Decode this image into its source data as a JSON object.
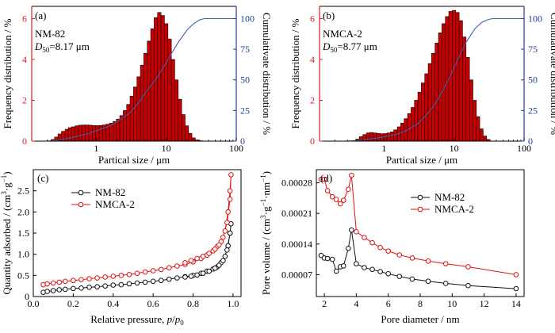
{
  "colors": {
    "bar_fill": "#c40000",
    "bar_edge": "#1a0000",
    "left_axis_red": "#d62020",
    "right_axis_blue": "#1f3f9e",
    "cumulative_line": "#3a62b5",
    "series_black": "#111111",
    "series_red": "#e01010"
  },
  "chart_data": [
    {
      "type": "bar",
      "panel_label": "(a)",
      "sample": "NM-82",
      "d50_label": "D",
      "d50_sub": "50",
      "d50_value": "=8.17 μm",
      "xlabel": "Partical size / μm",
      "ylabel": "Frequency distribution / %",
      "ylabel_right": "Cumulativate distribution / %",
      "xscale": "log",
      "xlim": [
        0.12,
        100
      ],
      "ylim": [
        0,
        6.6
      ],
      "ylim_right": [
        0,
        110
      ],
      "xticks": [
        {
          "v": 1,
          "label": "1"
        },
        {
          "v": 10,
          "label": "10"
        },
        {
          "v": 100,
          "label": "100"
        }
      ],
      "yticks": [
        0,
        2,
        4,
        6
      ],
      "yticks_right": [
        0,
        25,
        50,
        75,
        100
      ],
      "bins": {
        "x": [
          0.24,
          0.27,
          0.3,
          0.34,
          0.38,
          0.42,
          0.47,
          0.53,
          0.59,
          0.66,
          0.74,
          0.83,
          0.93,
          1.04,
          1.17,
          1.3,
          1.46,
          1.64,
          1.83,
          2.05,
          2.3,
          2.57,
          2.88,
          3.22,
          3.61,
          4.04,
          4.52,
          5.06,
          5.67,
          6.35,
          7.11,
          7.96,
          8.91,
          9.98,
          11.2,
          12.5,
          14.0,
          15.7,
          17.6,
          19.7,
          22.0,
          24.6,
          27.6,
          30.9
        ],
        "values": [
          0.08,
          0.2,
          0.35,
          0.48,
          0.58,
          0.66,
          0.7,
          0.75,
          0.78,
          0.79,
          0.79,
          0.78,
          0.76,
          0.76,
          0.77,
          0.79,
          0.83,
          0.88,
          0.96,
          1.08,
          1.25,
          1.5,
          1.8,
          2.2,
          2.65,
          3.15,
          3.72,
          4.3,
          4.9,
          5.5,
          6.05,
          6.3,
          6.15,
          5.75,
          5.0,
          4.0,
          3.0,
          2.05,
          1.3,
          0.75,
          0.38,
          0.16,
          0.06,
          0.02
        ]
      },
      "cumulative": {
        "x": [
          0.2,
          0.3,
          0.5,
          0.8,
          1,
          1.5,
          2,
          3,
          4,
          5,
          6,
          7,
          8,
          9,
          10,
          12,
          15,
          20,
          25,
          30,
          35,
          40,
          50,
          100
        ],
        "y": [
          0,
          1,
          3.5,
          6.5,
          8.5,
          12,
          16,
          23,
          31,
          39,
          45,
          50,
          55,
          60,
          64,
          72,
          81,
          91,
          96,
          99,
          100,
          100,
          100,
          100
        ]
      }
    },
    {
      "type": "bar",
      "panel_label": "(b)",
      "sample": "NMCA-2",
      "d50_label": "D",
      "d50_sub": "50",
      "d50_value": "=8.77 μm",
      "xlabel": "Partical size / μm",
      "ylabel": "Frequency distribution / %",
      "ylabel_right": "Cumulativate distribution / %",
      "xscale": "log",
      "xlim": [
        0.12,
        100
      ],
      "ylim": [
        0,
        6.6
      ],
      "ylim_right": [
        0,
        110
      ],
      "xticks": [
        {
          "v": 1,
          "label": "1"
        },
        {
          "v": 10,
          "label": "10"
        },
        {
          "v": 100,
          "label": "100"
        }
      ],
      "yticks": [
        0,
        2,
        4,
        6
      ],
      "yticks_right": [
        0,
        25,
        50,
        75,
        100
      ],
      "bins": {
        "x": [
          0.42,
          0.47,
          0.53,
          0.59,
          0.66,
          0.74,
          0.83,
          0.93,
          1.04,
          1.17,
          1.3,
          1.46,
          1.64,
          1.83,
          2.05,
          2.3,
          2.57,
          2.88,
          3.22,
          3.61,
          4.04,
          4.52,
          5.06,
          5.67,
          6.35,
          7.11,
          7.96,
          8.91,
          9.98,
          11.2,
          12.5,
          14.0,
          15.7,
          17.6,
          19.7,
          22.0,
          24.6,
          27.6,
          30.9
        ],
        "values": [
          0.1,
          0.22,
          0.32,
          0.4,
          0.42,
          0.4,
          0.38,
          0.36,
          0.37,
          0.4,
          0.45,
          0.55,
          0.7,
          0.88,
          1.1,
          1.35,
          1.65,
          2.0,
          2.4,
          2.85,
          3.3,
          3.8,
          4.3,
          4.8,
          5.3,
          5.75,
          6.1,
          6.35,
          6.4,
          6.3,
          5.9,
          5.1,
          4.1,
          3.0,
          2.0,
          1.2,
          0.6,
          0.25,
          0.08
        ]
      },
      "cumulative": {
        "x": [
          0.3,
          0.5,
          0.8,
          1,
          1.5,
          2,
          3,
          4,
          5,
          6,
          7,
          8,
          9,
          10,
          12,
          15,
          20,
          25,
          30,
          35,
          40,
          50,
          100
        ],
        "y": [
          0,
          1,
          2.5,
          3.5,
          5.5,
          8,
          14,
          21,
          28,
          35,
          42,
          48,
          54,
          60,
          70,
          81,
          92,
          97,
          99,
          100,
          100,
          100,
          100
        ]
      }
    },
    {
      "type": "line",
      "panel_label": "(c)",
      "xlabel_parts": [
        "Relative pressure, ",
        "p",
        "/",
        "p",
        "0"
      ],
      "ylabel_parts": [
        "Quantity adsorbed / (cm",
        "3",
        "·g",
        "−1",
        ")"
      ],
      "xlim": [
        0,
        1.04
      ],
      "ylim": [
        0,
        3.0
      ],
      "xticks": [
        0,
        0.2,
        0.4,
        0.6,
        0.8,
        1.0
      ],
      "xtick_labels": [
        "0.0",
        "0.2",
        "0.4",
        "0.6",
        "0.8",
        "1.0"
      ],
      "yticks": [
        0,
        0.5,
        1.0,
        1.5,
        2.0,
        2.5
      ],
      "ytick_labels": [
        "0",
        "0.5",
        "1.0",
        "1.5",
        "2.0",
        "2.5"
      ],
      "legend_position": "top-left",
      "series": [
        {
          "name": "NM-82",
          "color_key": "series_black",
          "x": [
            0.05,
            0.07,
            0.1,
            0.13,
            0.16,
            0.2,
            0.24,
            0.28,
            0.32,
            0.36,
            0.4,
            0.44,
            0.48,
            0.52,
            0.56,
            0.6,
            0.64,
            0.68,
            0.72,
            0.76,
            0.8,
            0.84,
            0.87,
            0.9,
            0.92,
            0.94,
            0.96,
            0.975,
            0.985,
            0.99,
            0.985,
            0.97,
            0.95,
            0.93,
            0.91,
            0.88,
            0.85,
            0.82,
            0.79,
            0.76
          ],
          "y": [
            0.1,
            0.12,
            0.14,
            0.16,
            0.17,
            0.19,
            0.2,
            0.22,
            0.23,
            0.25,
            0.27,
            0.28,
            0.3,
            0.32,
            0.34,
            0.36,
            0.38,
            0.41,
            0.44,
            0.47,
            0.5,
            0.55,
            0.6,
            0.65,
            0.7,
            0.8,
            0.95,
            1.2,
            1.5,
            1.72,
            1.5,
            1.1,
            0.85,
            0.74,
            0.67,
            0.6,
            0.55,
            0.51,
            0.48,
            0.46
          ]
        },
        {
          "name": "NMCA-2",
          "color_key": "series_red",
          "x": [
            0.05,
            0.07,
            0.1,
            0.13,
            0.16,
            0.2,
            0.24,
            0.28,
            0.32,
            0.36,
            0.4,
            0.44,
            0.48,
            0.52,
            0.56,
            0.6,
            0.64,
            0.68,
            0.72,
            0.76,
            0.8,
            0.84,
            0.87,
            0.9,
            0.92,
            0.94,
            0.96,
            0.975,
            0.985,
            0.99,
            0.985,
            0.97,
            0.95,
            0.93,
            0.91,
            0.88,
            0.85,
            0.82,
            0.79,
            0.76
          ],
          "y": [
            0.28,
            0.3,
            0.32,
            0.34,
            0.36,
            0.38,
            0.4,
            0.42,
            0.44,
            0.46,
            0.48,
            0.5,
            0.52,
            0.55,
            0.58,
            0.61,
            0.64,
            0.68,
            0.72,
            0.76,
            0.82,
            0.9,
            0.98,
            1.08,
            1.18,
            1.3,
            1.55,
            2.0,
            2.5,
            2.88,
            2.3,
            1.75,
            1.4,
            1.22,
            1.12,
            1.02,
            0.95,
            0.9,
            0.85,
            0.8
          ]
        }
      ]
    },
    {
      "type": "line",
      "panel_label": "(d)",
      "xlabel": "Pore diameter / nm",
      "ylabel_parts": [
        "Pore volume / (cm",
        "3",
        "·g",
        "−1",
        "·nm",
        "−1",
        ")"
      ],
      "xlim": [
        1.5,
        14.5
      ],
      "ylim": [
        2e-05,
        0.00031
      ],
      "xticks": [
        2,
        4,
        6,
        8,
        10,
        12,
        14
      ],
      "yticks": [
        7e-05,
        0.00014,
        0.00021,
        0.00028
      ],
      "ytick_labels": [
        "0.00007",
        "0.00014",
        "0.00021",
        "0.00028"
      ],
      "legend_position": "top-center",
      "series": [
        {
          "name": "NM-82",
          "color_key": "series_black",
          "x": [
            1.8,
            2.0,
            2.2,
            2.5,
            2.75,
            3.0,
            3.2,
            3.5,
            3.7,
            4.0,
            4.5,
            5.0,
            5.5,
            6.0,
            6.7,
            7.5,
            8.5,
            9.6,
            11.0,
            14.0
          ],
          "y": [
            0.000114,
            0.000108,
            0.000107,
            0.000105,
            7.8e-05,
            8.8e-05,
            9e-05,
            0.00013,
            0.000172,
            9.5e-05,
            8.6e-05,
            8.2e-05,
            7.7e-05,
            7.2e-05,
            6.6e-05,
            6e-05,
            5.5e-05,
            5e-05,
            4.5e-05,
            3.8e-05
          ]
        },
        {
          "name": "NMCA-2",
          "color_key": "series_red",
          "x": [
            1.8,
            2.0,
            2.2,
            2.5,
            2.75,
            3.0,
            3.2,
            3.5,
            3.7,
            4.0,
            4.5,
            5.0,
            5.5,
            6.0,
            6.7,
            7.5,
            8.5,
            9.6,
            11.0,
            14.0
          ],
          "y": [
            0.000288,
            0.000288,
            0.000262,
            0.000248,
            0.000242,
            0.000232,
            0.00024,
            0.000265,
            0.000297,
            0.000168,
            0.000155,
            0.000143,
            0.000132,
            0.000124,
            0.000115,
            0.000108,
            0.000101,
            9.5e-05,
            8.8e-05,
            7e-05
          ]
        }
      ]
    }
  ]
}
